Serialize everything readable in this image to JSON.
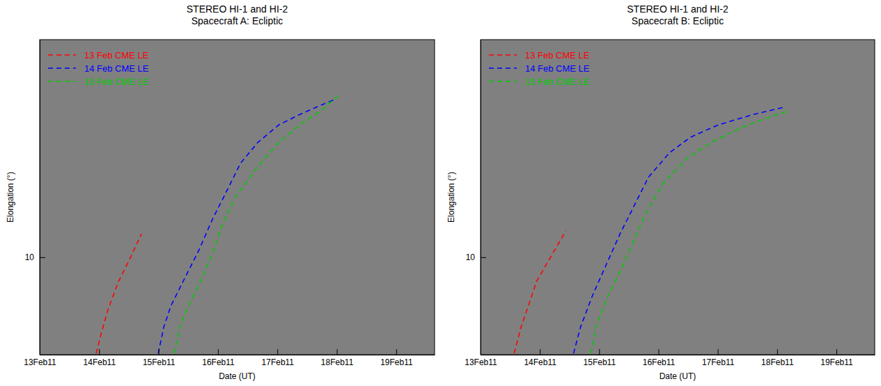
{
  "chart_data": [
    {
      "type": "line",
      "title": "STEREO HI-1 and HI-2",
      "subtitle": "Spacecraft A: Ecliptic",
      "x_label": "Date (UT)",
      "y_label": "Elongation (°)",
      "log": "y",
      "legend": "upper left",
      "xlim": [
        "2011-02-13T00:00",
        "2011-02-19T15:30"
      ],
      "xticks": [
        {
          "value": "2011-02-13T00:00",
          "label": "13Feb11"
        },
        {
          "value": "2011-02-14T00:00",
          "label": "14Feb11"
        },
        {
          "value": "2011-02-15T00:00",
          "label": "15Feb11"
        },
        {
          "value": "2011-02-16T00:00",
          "label": "16Feb11"
        },
        {
          "value": "2011-02-17T00:00",
          "label": "17Feb11"
        },
        {
          "value": "2011-02-18T00:00",
          "label": "18Feb11"
        },
        {
          "value": "2011-02-19T00:00",
          "label": "19Feb11"
        }
      ],
      "ylim": [
        3.7,
        92
      ],
      "yticks": [
        10
      ],
      "series": [
        {
          "name": "13 Feb CME LE",
          "color": "#ff0000",
          "line_style": "dashed",
          "x": [
            "2011-02-13T22:49",
            "2011-02-14T00:47",
            "2011-02-14T03:36",
            "2011-02-14T07:49",
            "2011-02-14T12:03",
            "2011-02-14T17:08"
          ],
          "values": [
            3.75,
            4.57,
            5.87,
            7.8,
            9.65,
            12.7
          ]
        },
        {
          "name": "14 Feb CME LE",
          "color": "#0000ff",
          "line_style": "dashed",
          "x": [
            "2011-02-14T23:53",
            "2011-02-15T02:08",
            "2011-02-15T04:58",
            "2011-02-15T10:35",
            "2011-02-15T16:13",
            "2011-02-15T21:52",
            "2011-02-16T03:30",
            "2011-02-16T09:07",
            "2011-02-16T16:10",
            "2011-02-17T00:37",
            "2011-02-17T09:04",
            "2011-02-17T17:31",
            "2011-02-17T23:43"
          ],
          "values": [
            3.75,
            4.91,
            6.08,
            8.08,
            10.7,
            14.8,
            19.6,
            26.1,
            32.3,
            38.6,
            42.9,
            47.1,
            50.2
          ]
        },
        {
          "name": "15 Feb CME LE",
          "color": "#00cc00",
          "line_style": "dashed",
          "x": [
            "2011-02-15T06:22",
            "2011-02-15T08:37",
            "2011-02-15T12:00",
            "2011-02-15T17:38",
            "2011-02-15T21:52",
            "2011-02-16T02:05",
            "2011-02-16T07:43",
            "2011-02-16T16:10",
            "2011-02-17T00:37",
            "2011-02-17T09:04",
            "2011-02-17T17:31",
            "2011-02-18T00:33"
          ],
          "values": [
            3.75,
            4.91,
            6.08,
            8.08,
            10.4,
            14.3,
            19.0,
            25.2,
            32.3,
            38.6,
            44.5,
            52.0
          ]
        }
      ]
    },
    {
      "type": "line",
      "title": "STEREO HI-1 and HI-2",
      "subtitle": "Spacecraft B: Ecliptic",
      "x_label": "Date (UT)",
      "y_label": "Elongation (°)",
      "log": "y",
      "legend": "upper left",
      "xlim": [
        "2011-02-13T00:00",
        "2011-02-19T15:30"
      ],
      "xticks": [
        {
          "value": "2011-02-13T00:00",
          "label": "13Feb11"
        },
        {
          "value": "2011-02-14T00:00",
          "label": "14Feb11"
        },
        {
          "value": "2011-02-15T00:00",
          "label": "15Feb11"
        },
        {
          "value": "2011-02-16T00:00",
          "label": "16Feb11"
        },
        {
          "value": "2011-02-17T00:00",
          "label": "17Feb11"
        },
        {
          "value": "2011-02-18T00:00",
          "label": "18Feb11"
        },
        {
          "value": "2011-02-19T00:00",
          "label": "19Feb11"
        }
      ],
      "ylim": [
        3.7,
        92
      ],
      "yticks": [
        10
      ],
      "series": [
        {
          "name": "13 Feb CME LE",
          "color": "#ff0000",
          "line_style": "dashed",
          "x": [
            "2011-02-13T13:35",
            "2011-02-13T16:25",
            "2011-02-13T19:48",
            "2011-02-13T22:38",
            "2011-02-14T04:18",
            "2011-02-14T10:32"
          ],
          "values": [
            3.75,
            4.91,
            6.3,
            7.8,
            10.0,
            13.1
          ]
        },
        {
          "name": "14 Feb CME LE",
          "color": "#0000ff",
          "line_style": "dashed",
          "x": [
            "2011-02-14T13:38",
            "2011-02-14T16:28",
            "2011-02-14T21:17",
            "2011-02-15T02:57",
            "2011-02-15T08:36",
            "2011-02-15T14:15",
            "2011-02-15T19:55",
            "2011-02-16T04:25",
            "2011-02-16T12:55",
            "2011-02-17T00:13",
            "2011-02-17T14:23",
            "2011-02-18T02:33"
          ],
          "values": [
            3.75,
            4.91,
            6.76,
            9.32,
            12.8,
            17.0,
            22.6,
            29.0,
            34.0,
            38.6,
            42.9,
            46.1
          ]
        },
        {
          "name": "15 Feb CME LE",
          "color": "#00cc00",
          "line_style": "dashed",
          "x": [
            "2011-02-14T20:43",
            "2011-02-14T22:42",
            "2011-02-15T02:57",
            "2011-02-15T08:36",
            "2011-02-15T12:50",
            "2011-02-15T18:30",
            "2011-02-16T01:35",
            "2011-02-16T11:30",
            "2011-02-16T21:24",
            "2011-02-17T08:43",
            "2011-02-17T20:02",
            "2011-02-18T04:32"
          ],
          "values": [
            3.75,
            4.91,
            6.53,
            8.68,
            11.1,
            15.3,
            21.1,
            27.4,
            32.3,
            37.2,
            41.4,
            44.5
          ]
        }
      ]
    }
  ]
}
